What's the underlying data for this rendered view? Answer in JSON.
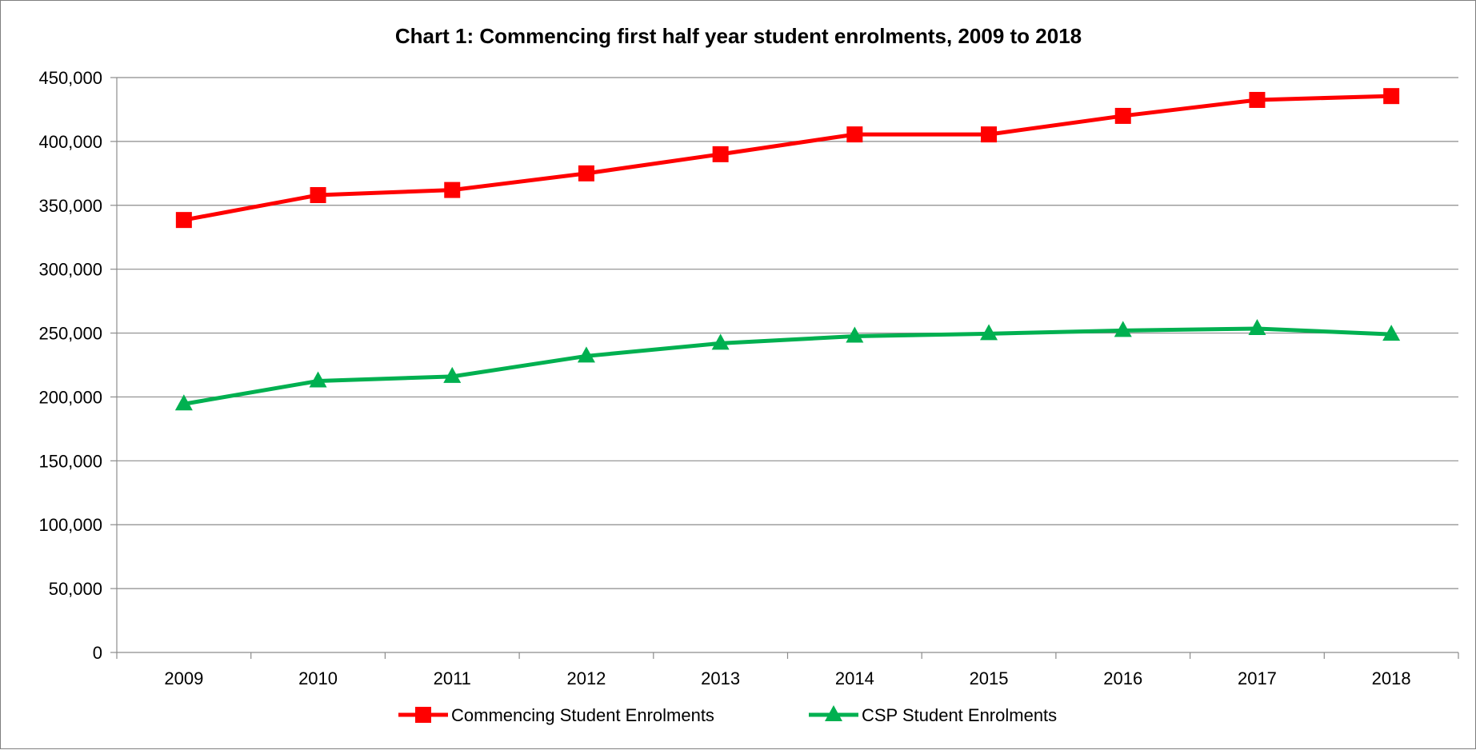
{
  "chart_data": {
    "type": "line",
    "title": "Chart 1: Commencing first half year student enrolments, 2009 to 2018",
    "xlabel": "",
    "ylabel": "",
    "categories": [
      "2009",
      "2010",
      "2011",
      "2012",
      "2013",
      "2014",
      "2015",
      "2016",
      "2017",
      "2018"
    ],
    "ylim": [
      0,
      450000
    ],
    "yticks": [
      0,
      50000,
      100000,
      150000,
      200000,
      250000,
      300000,
      350000,
      400000,
      450000
    ],
    "ytick_labels": [
      "0",
      "50,000",
      "100,000",
      "150,000",
      "200,000",
      "250,000",
      "300,000",
      "350,000",
      "400,000",
      "450,000"
    ],
    "grid": "horizontal",
    "legend_position": "bottom",
    "series": [
      {
        "name": "Commencing Student Enrolments",
        "color": "#ff0000",
        "marker": "square",
        "values": [
          338500,
          358000,
          362000,
          375000,
          390000,
          405500,
          405500,
          420000,
          432500,
          435500
        ]
      },
      {
        "name": "CSP Student Enrolments",
        "color": "#00b050",
        "marker": "triangle",
        "values": [
          194500,
          212500,
          216000,
          232000,
          242000,
          247500,
          249500,
          252000,
          253500,
          249000
        ]
      }
    ]
  }
}
